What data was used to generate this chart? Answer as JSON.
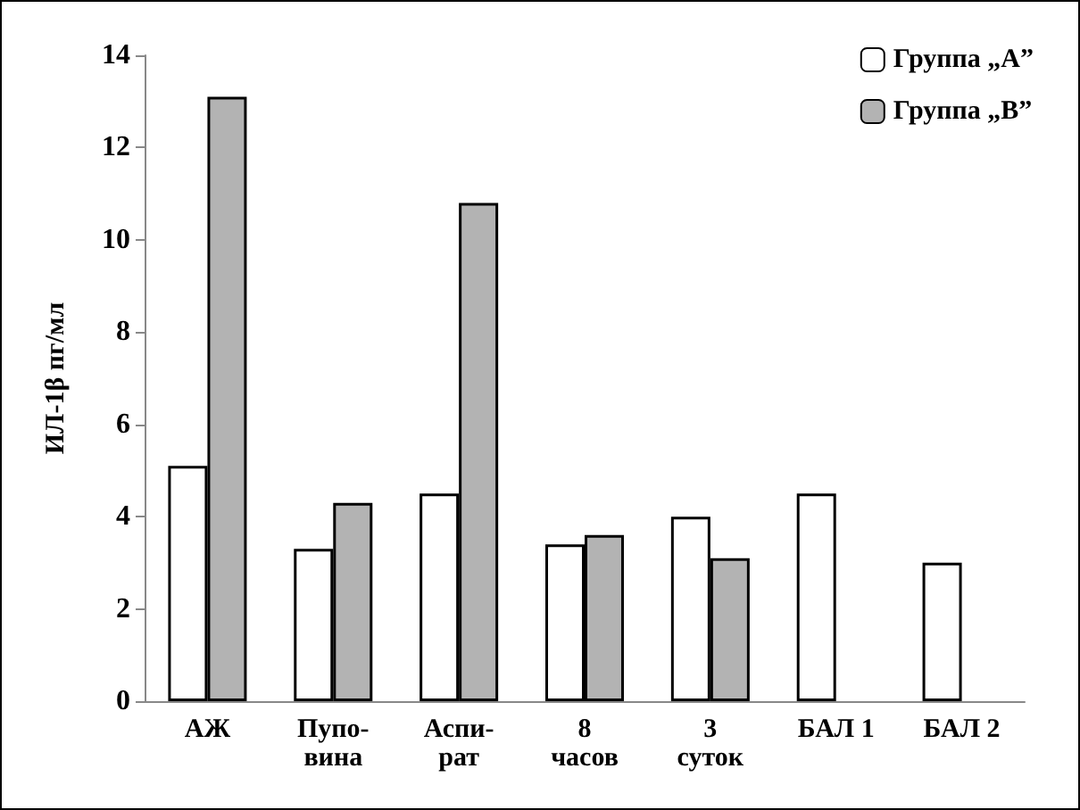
{
  "chart_data": {
    "type": "bar",
    "ylabel": "ИЛ-1β пг/мл",
    "categories": [
      "АЖ",
      "Пупо-\nвина",
      "Аспи-\nрат",
      "8\nчасов",
      "3\nсуток",
      "БАЛ 1",
      "БАЛ 2"
    ],
    "series": [
      {
        "name": "Группа „А”",
        "color": "#ffffff",
        "values": [
          5.1,
          3.3,
          4.5,
          3.4,
          4.0,
          4.5,
          3.0
        ]
      },
      {
        "name": "Группа „В”",
        "color": "#b3b3b3",
        "values": [
          13.1,
          4.3,
          10.8,
          3.6,
          3.1,
          null,
          null
        ]
      }
    ],
    "ylim": [
      0,
      14
    ],
    "yticks": [
      0,
      2,
      4,
      6,
      8,
      10,
      12,
      14
    ],
    "grid": false,
    "legend": "top right"
  }
}
